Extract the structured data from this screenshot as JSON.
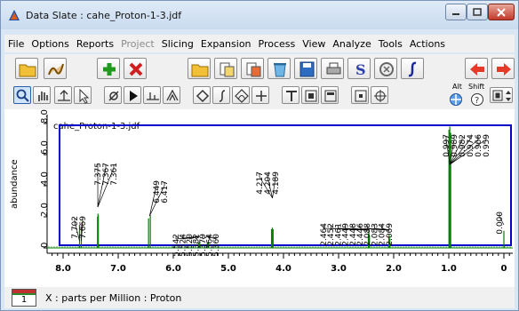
{
  "window": {
    "title": "Data Slate : cahe_Proton-1-3.jdf",
    "colors": {
      "spectrum": "#008000",
      "frame": "#0000cc",
      "title_bg": "#dfeaf7"
    }
  },
  "menubar": {
    "items": [
      {
        "label": "File",
        "enabled": true
      },
      {
        "label": "Options",
        "enabled": true
      },
      {
        "label": "Reports",
        "enabled": true
      },
      {
        "label": "Project",
        "enabled": false
      },
      {
        "label": "Slicing",
        "enabled": true
      },
      {
        "label": "Expansion",
        "enabled": true
      },
      {
        "label": "Process",
        "enabled": true
      },
      {
        "label": "View",
        "enabled": true
      },
      {
        "label": "Analyze",
        "enabled": true
      },
      {
        "label": "Tools",
        "enabled": true
      },
      {
        "label": "Actions",
        "enabled": true
      }
    ]
  },
  "toolbar2": {
    "alt_label": "Alt",
    "shift_label": "Shift"
  },
  "plot": {
    "filename": "cahe_Proton-1-3.jdf",
    "ylabel": "abundance",
    "x_ticks": [
      "8.0",
      "7.0",
      "6.0",
      "5.0",
      "4.0",
      "3.0",
      "2.0",
      "1.0",
      "0"
    ],
    "y_ticks": [
      "0",
      "2.0",
      "4.0",
      "6.0",
      "8.0"
    ],
    "peak_groups": [
      {
        "labels": [
          "7.702",
          "7.669"
        ]
      },
      {
        "labels": [
          "7.375",
          "7.367",
          "7.361"
        ]
      },
      {
        "labels": [
          "6.449",
          "6.417"
        ]
      },
      {
        "labels": [
          "5.542",
          "5.524",
          "5.520",
          "5.382",
          "5.379",
          "5.364",
          "5.360"
        ]
      },
      {
        "labels": [
          "4.217",
          "4.204",
          "4.189"
        ]
      },
      {
        "labels": [
          "2.464",
          "2.452",
          "2.461",
          "2.449",
          "2.448",
          "2.446",
          "2.088",
          "2.083",
          "2.084",
          "2.069"
        ]
      },
      {
        "labels": [
          "0.997",
          "0.989",
          "0.982",
          "0.974",
          "0.966",
          "0.959"
        ]
      },
      {
        "labels": [
          "0.000"
        ]
      }
    ]
  },
  "statusbar": {
    "page": "1",
    "xaxis_text": "X : parts per Million : Proton"
  }
}
